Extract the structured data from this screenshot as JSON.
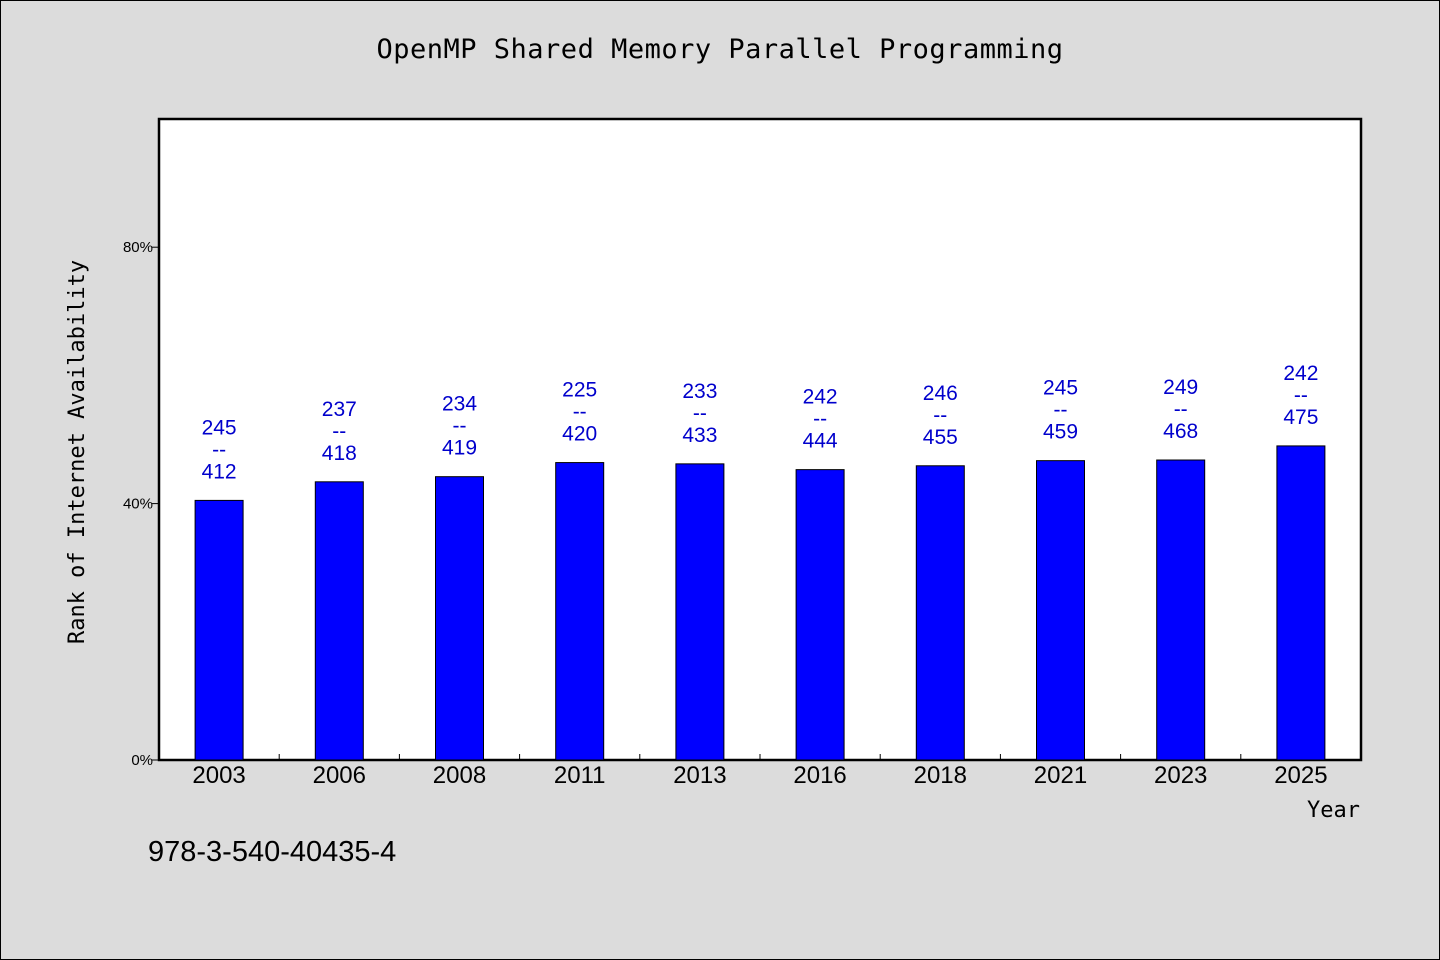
{
  "colors": {
    "background": "#dcdcdc",
    "plot_background": "#ffffff",
    "bar": "#0000ff",
    "data_label": "#0000cc"
  },
  "isbn": "978-3-540-40435-4",
  "chart_data": {
    "type": "bar",
    "title": "OpenMP Shared Memory Parallel Programming",
    "xlabel": "Year",
    "ylabel": "Rank of Internet Availability",
    "ylim": [
      0,
      100
    ],
    "yticks": [
      0,
      40,
      80
    ],
    "ytick_labels": [
      "0%",
      "40%",
      "80%"
    ],
    "grid": false,
    "categories": [
      "2003",
      "2006",
      "2008",
      "2011",
      "2013",
      "2016",
      "2018",
      "2021",
      "2023",
      "2025"
    ],
    "values": [
      40.5,
      43.4,
      44.2,
      46.4,
      46.2,
      45.3,
      45.9,
      46.7,
      46.8,
      49.0
    ],
    "labels": [
      {
        "top": "245",
        "sep": "--",
        "bottom": "412"
      },
      {
        "top": "237",
        "sep": "--",
        "bottom": "418"
      },
      {
        "top": "234",
        "sep": "--",
        "bottom": "419"
      },
      {
        "top": "225",
        "sep": "--",
        "bottom": "420"
      },
      {
        "top": "233",
        "sep": "--",
        "bottom": "433"
      },
      {
        "top": "242",
        "sep": "--",
        "bottom": "444"
      },
      {
        "top": "246",
        "sep": "--",
        "bottom": "455"
      },
      {
        "top": "245",
        "sep": "--",
        "bottom": "459"
      },
      {
        "top": "249",
        "sep": "--",
        "bottom": "468"
      },
      {
        "top": "242",
        "sep": "--",
        "bottom": "475"
      }
    ]
  }
}
